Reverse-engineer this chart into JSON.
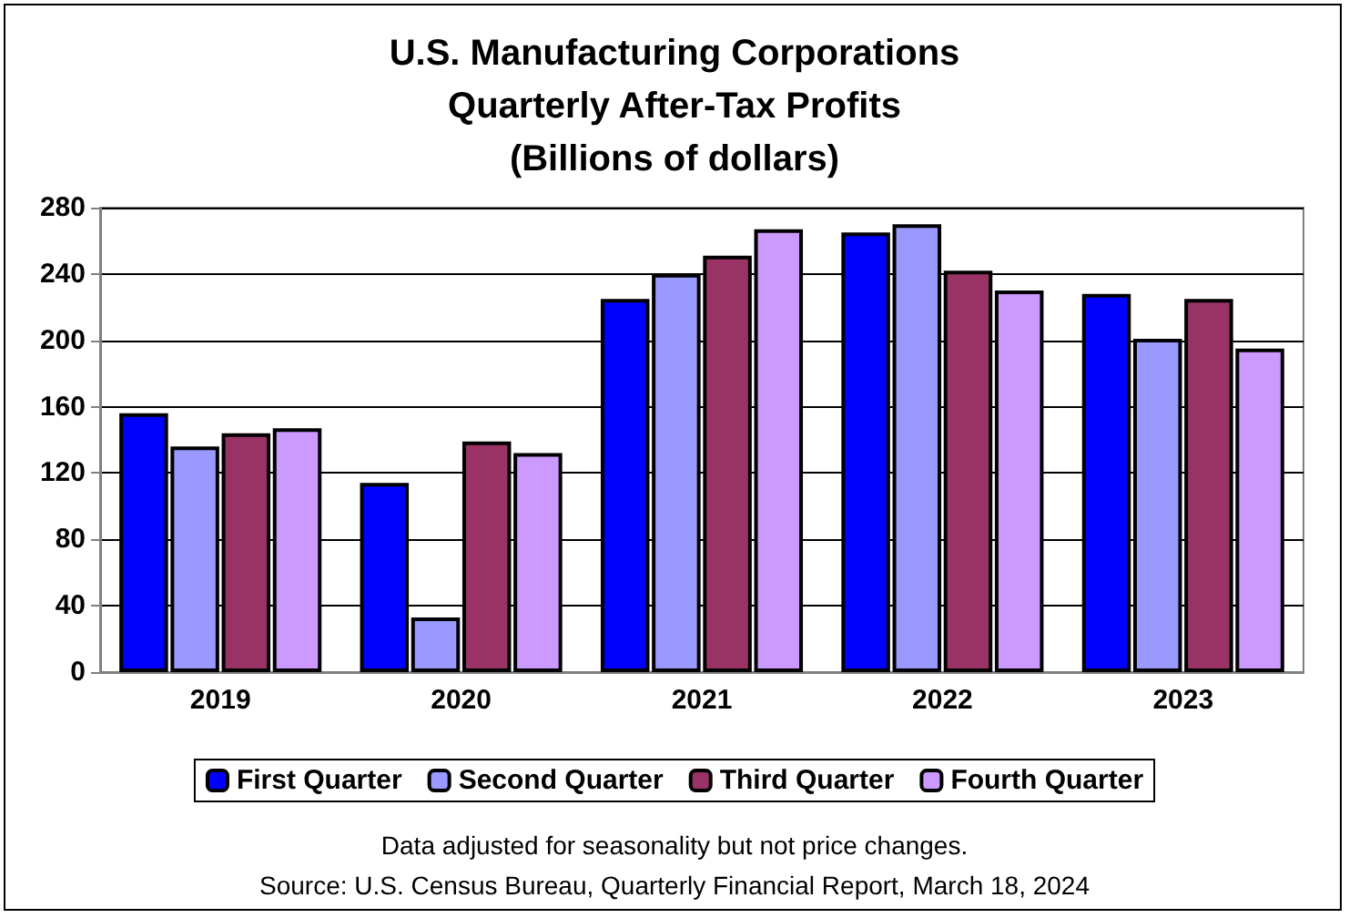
{
  "chart_data": {
    "type": "bar",
    "title": "U.S. Manufacturing Corporations\nQuarterly After-Tax Profits\n(Billions of dollars)",
    "categories": [
      "2019",
      "2020",
      "2021",
      "2022",
      "2023"
    ],
    "series": [
      {
        "name": "First Quarter",
        "color": "#0000ff",
        "values": [
          156,
          114,
          225,
          265,
          228
        ]
      },
      {
        "name": "Second Quarter",
        "color": "#9999ff",
        "values": [
          136,
          33,
          240,
          270,
          201
        ]
      },
      {
        "name": "Third Quarter",
        "color": "#993366",
        "values": [
          144,
          139,
          251,
          242,
          225
        ]
      },
      {
        "name": "Fourth Quarter",
        "color": "#cc99ff",
        "values": [
          147,
          132,
          267,
          230,
          195
        ]
      }
    ],
    "ylim": [
      0,
      280
    ],
    "yticks": [
      0,
      40,
      80,
      120,
      160,
      200,
      240,
      280
    ],
    "grid": "y",
    "legend": "bottom",
    "annotations": [
      "Data adjusted for seasonality but not price changes.",
      "Source: U.S. Census Bureau, Quarterly Financial Report, March 18, 2024"
    ]
  }
}
